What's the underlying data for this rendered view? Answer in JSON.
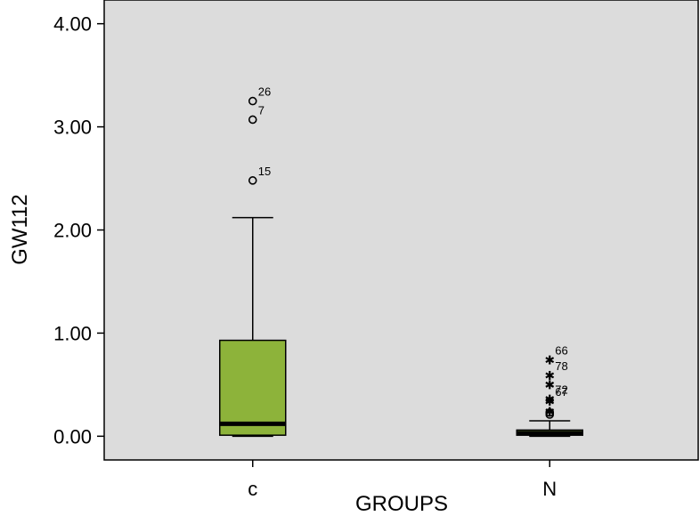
{
  "chart_data": {
    "type": "box",
    "xlabel": "GROUPS",
    "ylabel": "GW112",
    "ylim": [
      -0.23,
      4.23
    ],
    "yticks": [
      "0.00",
      "1.00",
      "2.00",
      "3.00",
      "4.00"
    ],
    "colors": {
      "plot_bg": "#dcdcdc",
      "box_fill": "#8db33a",
      "median": "#000000"
    },
    "groups": [
      {
        "name": "c",
        "whisker_low": 0.0,
        "q1": 0.01,
        "median": 0.12,
        "q3": 0.93,
        "whisker_high": 2.12,
        "outliers": [
          {
            "value": 3.25,
            "label": "26",
            "marker": "circle"
          },
          {
            "value": 3.07,
            "label": "7",
            "marker": "circle"
          },
          {
            "value": 2.48,
            "label": "15",
            "marker": "circle"
          }
        ]
      },
      {
        "name": "N",
        "whisker_low": 0.0,
        "q1": 0.01,
        "median": 0.03,
        "q3": 0.06,
        "whisker_high": 0.15,
        "outliers": [
          {
            "value": 0.74,
            "label": "66",
            "marker": "star"
          },
          {
            "value": 0.59,
            "label": "78",
            "marker": "star"
          },
          {
            "value": 0.5,
            "label": "",
            "marker": "star"
          },
          {
            "value": 0.36,
            "label": "72",
            "marker": "star"
          },
          {
            "value": 0.34,
            "label": "67",
            "marker": "star"
          },
          {
            "value": 0.24,
            "label": "",
            "marker": "star"
          },
          {
            "value": 0.23,
            "label": "",
            "marker": "circle"
          },
          {
            "value": 0.21,
            "label": "",
            "marker": "circle"
          }
        ]
      }
    ]
  }
}
